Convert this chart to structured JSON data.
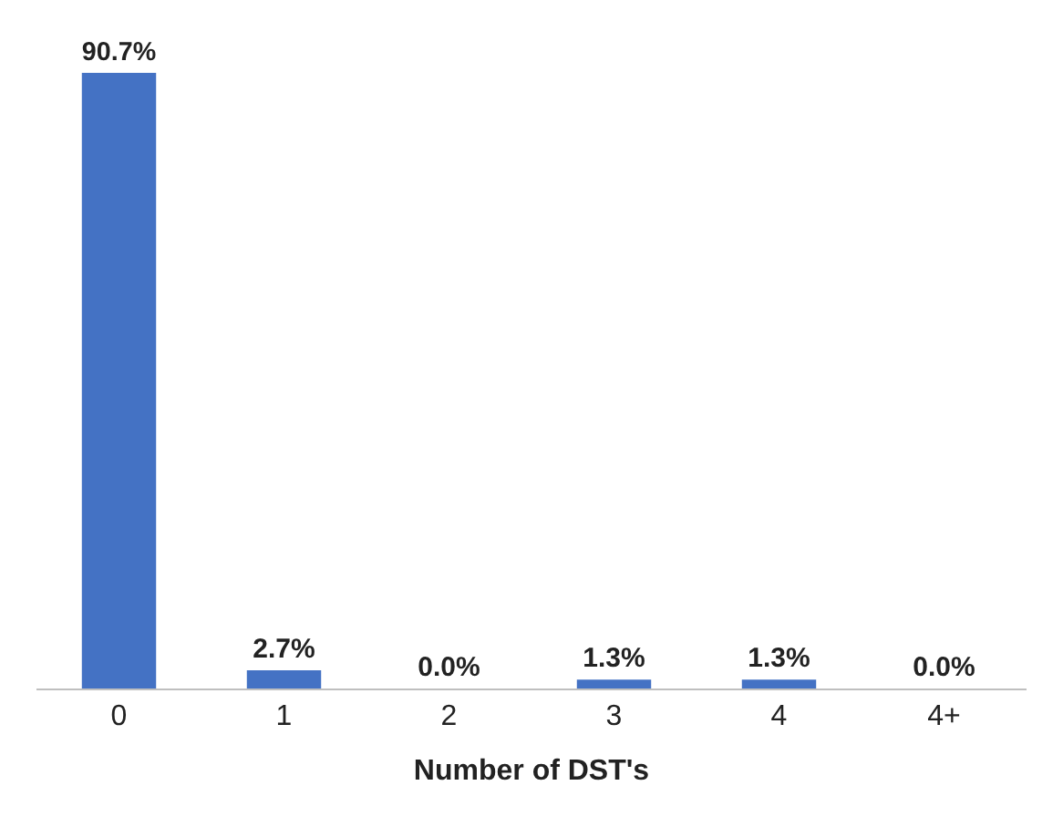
{
  "chart_data": {
    "type": "bar",
    "xlabel": "Number of DST's",
    "categories": [
      "0",
      "1",
      "2",
      "3",
      "4",
      "4+"
    ],
    "values": [
      90.7,
      2.7,
      0.0,
      1.3,
      1.3,
      0.0
    ],
    "value_labels": [
      "90.7%",
      "2.7%",
      "0.0%",
      "1.3%",
      "1.3%",
      "0.0%"
    ],
    "color": "#4472c4"
  }
}
